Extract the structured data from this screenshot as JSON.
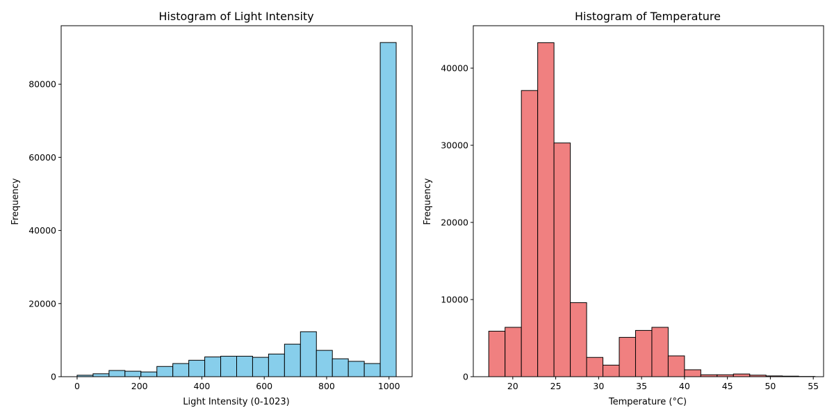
{
  "chart_data": [
    {
      "type": "bar",
      "title": "Histogram of Light Intensity",
      "xlabel": "Light Intensity (0-1023)",
      "ylabel": "Frequency",
      "xlim": [
        -51.15,
        1074.15
      ],
      "ylim": [
        0,
        96000
      ],
      "xticks": [
        0,
        200,
        400,
        600,
        800,
        1000
      ],
      "yticks": [
        0,
        20000,
        40000,
        60000,
        80000
      ],
      "bin_edges": [
        0,
        51.15,
        102.3,
        153.45,
        204.6,
        255.75,
        306.9,
        358.05,
        409.2,
        460.35,
        511.5,
        562.65,
        613.8,
        664.95,
        716.1,
        767.25,
        818.4,
        869.55,
        920.7,
        971.85,
        1023
      ],
      "values": [
        400,
        800,
        1700,
        1500,
        1300,
        2800,
        3600,
        4500,
        5400,
        5600,
        5600,
        5300,
        6200,
        8900,
        12300,
        7200,
        4900,
        4200,
        3600,
        91400
      ],
      "bar_color": "#87ceeb",
      "edge_color": "#000000",
      "grid": false
    },
    {
      "type": "bar",
      "title": "Histogram of Temperature",
      "xlabel": "Temperature (°C)",
      "ylabel": "Frequency",
      "xlim": [
        15.4,
        56.2
      ],
      "ylim": [
        0,
        45500
      ],
      "xticks": [
        20,
        25,
        30,
        35,
        40,
        45,
        50,
        55
      ],
      "yticks": [
        0,
        10000,
        20000,
        30000,
        40000
      ],
      "bin_edges": [
        17.2,
        19.1,
        21.0,
        22.9,
        24.8,
        26.7,
        28.6,
        30.5,
        32.4,
        34.3,
        36.2,
        38.1,
        40.0,
        41.9,
        43.8,
        45.7,
        47.6,
        49.5,
        51.4,
        53.3,
        55.2
      ],
      "values": [
        5900,
        6400,
        37100,
        43300,
        30300,
        9600,
        2500,
        1500,
        5100,
        6000,
        6400,
        2700,
        900,
        250,
        250,
        350,
        200,
        100,
        70,
        30
      ],
      "bar_color": "#f08080",
      "edge_color": "#000000",
      "grid": false
    }
  ]
}
